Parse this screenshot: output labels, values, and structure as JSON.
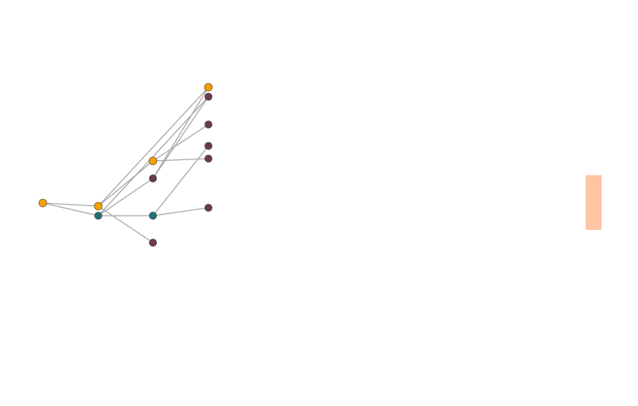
{
  "diagram": {
    "type": "tree-network",
    "colors": {
      "edge": "#a8a8a8",
      "highlight_node": "#f5a000",
      "secondary_node": "#226f78",
      "leaf_node": "#6b3b4b",
      "side_bar": "#ffc4a2"
    },
    "nodes": [
      {
        "id": "n0",
        "group": "highlight_node"
      },
      {
        "id": "n1",
        "group": "highlight_node"
      },
      {
        "id": "n2",
        "group": "secondary_node"
      },
      {
        "id": "n3",
        "group": "highlight_node"
      },
      {
        "id": "n4",
        "group": "leaf_node"
      },
      {
        "id": "n5",
        "group": "secondary_node"
      },
      {
        "id": "n6",
        "group": "leaf_node"
      },
      {
        "id": "n7",
        "group": "highlight_node"
      },
      {
        "id": "n8",
        "group": "leaf_node"
      },
      {
        "id": "n9",
        "group": "leaf_node"
      },
      {
        "id": "n10",
        "group": "leaf_node"
      },
      {
        "id": "n11",
        "group": "leaf_node"
      },
      {
        "id": "n12",
        "group": "leaf_node"
      }
    ],
    "edges": [
      [
        "n0",
        "n1"
      ],
      [
        "n0",
        "n2"
      ],
      [
        "n1",
        "n3"
      ],
      [
        "n1",
        "n7"
      ],
      [
        "n1",
        "n6"
      ],
      [
        "n2",
        "n4"
      ],
      [
        "n2",
        "n5"
      ],
      [
        "n2",
        "n9"
      ],
      [
        "n3",
        "n11"
      ],
      [
        "n3",
        "n8"
      ],
      [
        "n4",
        "n7"
      ],
      [
        "n4",
        "n9"
      ],
      [
        "n5",
        "n10"
      ],
      [
        "n5",
        "n12"
      ]
    ]
  }
}
